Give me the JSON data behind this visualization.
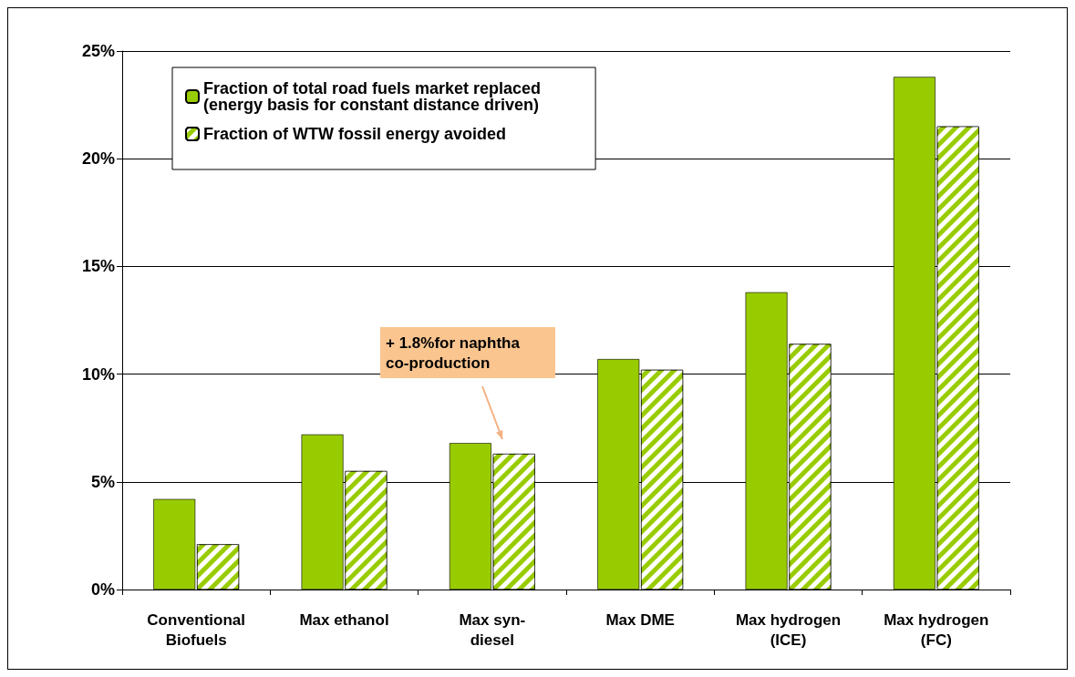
{
  "chart_data": {
    "type": "bar",
    "categories": [
      "Conventional\nBiofuels",
      "Max ethanol",
      "Max syn-\ndiesel",
      "Max DME",
      "Max hydrogen\n(ICE)",
      "Max hydrogen\n(FC)"
    ],
    "series": [
      {
        "name": "Fraction of total road fuels market replaced\n(energy basis for constant distance driven)",
        "color": "#99cc00",
        "values": [
          4.2,
          7.2,
          6.8,
          10.7,
          13.8,
          23.8
        ]
      },
      {
        "name": "Fraction of WTW fossil energy avoided",
        "color": "#99cc00",
        "values": [
          2.1,
          5.5,
          6.3,
          10.2,
          11.4,
          21.5
        ]
      }
    ],
    "ylim": [
      0,
      25
    ],
    "yticks": [
      {
        "value": 0,
        "label": "0%"
      },
      {
        "value": 5,
        "label": "5%"
      },
      {
        "value": 10,
        "label": "10%"
      },
      {
        "value": 15,
        "label": "15%"
      },
      {
        "value": 20,
        "label": "20%"
      },
      {
        "value": 25,
        "label": "25%"
      }
    ],
    "grid": "y",
    "legend": "top left",
    "annotations": [
      "+ 1.8%for naphtha co-production"
    ]
  }
}
